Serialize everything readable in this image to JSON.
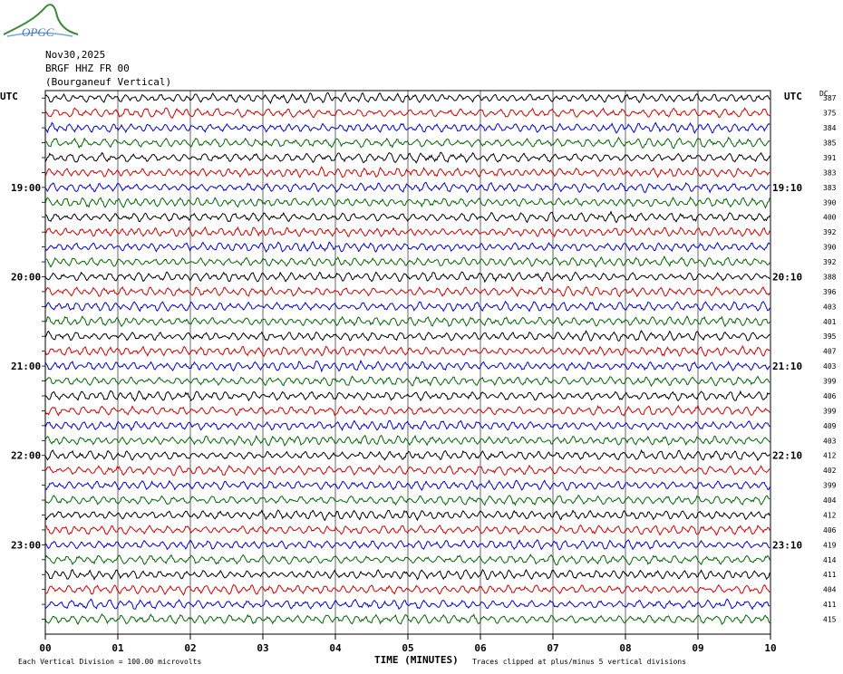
{
  "logo": {
    "text": "OPGC"
  },
  "header": {
    "date": "Nov30,2025",
    "station": "BRGF HHZ FR 00",
    "location": "(Bourganeuf Vertical)"
  },
  "left_label": "UTC",
  "right_label": "UTC",
  "dc_label": "DC",
  "footer": {
    "scale": "Each Vertical Division =  100.00 microvolts",
    "xlabel": "TIME (MINUTES)",
    "clip": "Traces clipped at plus/minus 5 vertical divisions"
  },
  "chart_data": {
    "type": "line",
    "title": "",
    "xlabel": "TIME (MINUTES)",
    "ylabel": "",
    "x_ticks": [
      "00",
      "01",
      "02",
      "03",
      "04",
      "05",
      "06",
      "07",
      "08",
      "09",
      "10"
    ],
    "xlim": [
      0,
      10
    ],
    "grid": true,
    "trace_colors": [
      "#000000",
      "#cc0000",
      "#0000cc",
      "#006600"
    ],
    "left_time_labels": [
      {
        "trace": 6,
        "label": "19:00"
      },
      {
        "trace": 12,
        "label": "20:00"
      },
      {
        "trace": 18,
        "label": "21:00"
      },
      {
        "trace": 24,
        "label": "22:00"
      },
      {
        "trace": 30,
        "label": "23:00"
      }
    ],
    "right_time_labels": [
      {
        "trace": 6,
        "label": "19:10"
      },
      {
        "trace": 12,
        "label": "20:10"
      },
      {
        "trace": 18,
        "label": "21:10"
      },
      {
        "trace": 24,
        "label": "22:10"
      },
      {
        "trace": 30,
        "label": "23:10"
      }
    ],
    "dc_offsets": [
      387,
      375,
      384,
      385,
      391,
      383,
      383,
      390,
      400,
      392,
      390,
      392,
      388,
      396,
      403,
      401,
      395,
      407,
      403,
      399,
      406,
      399,
      409,
      403,
      412,
      402,
      399,
      404,
      412,
      406,
      419,
      414,
      411,
      404,
      411,
      415
    ]
  }
}
